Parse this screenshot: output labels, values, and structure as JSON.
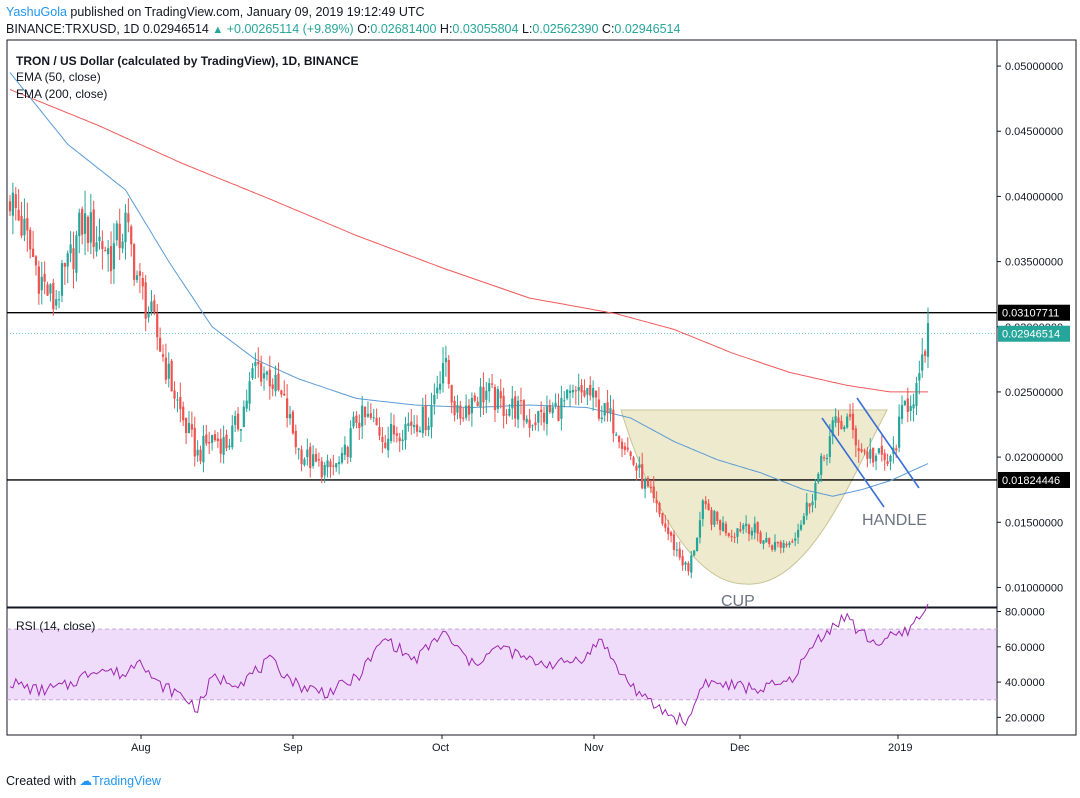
{
  "header": {
    "author": "YashuGola",
    "published_text": "published on TradingView.com, January 09, 2019 19:12:49 UTC",
    "symbol_line": "BINANCE:TRXUSD, 1D",
    "last": "0.02946514",
    "change": "+0.00265114 (+9.89%)",
    "o_label": "O:",
    "o": "0.02681400",
    "h_label": "H:",
    "h": "0.03055804",
    "l_label": "L:",
    "l": "0.02562390",
    "c_label": "C:",
    "c": "0.02946514"
  },
  "legend": {
    "title": "TRON / US Dollar (calculated by TradingView), 1D, BINANCE",
    "ema50": "EMA (50, close)",
    "ema200": "EMA (200, close)",
    "rsi": "RSI (14, close)"
  },
  "footer": {
    "created_with": "Created with",
    "brand": "TradingView"
  },
  "colors": {
    "up": "#26a69a",
    "down": "#ef5350",
    "ema50": "#5b9bd5",
    "ema200": "#f05a5a",
    "rsi": "#9c27b0",
    "rsi_band": "#efdcfa",
    "cup_fill": "#e8e5c0",
    "trendline": "#3b6fd6",
    "annotation": "#6b7480"
  },
  "chart_data": [
    {
      "type": "candlestick",
      "ylim": [
        0.0085,
        0.052
      ],
      "yticks": [
        "0.05000000",
        "0.04500000",
        "0.04000000",
        "0.03500000",
        "0.03000000",
        "0.02500000",
        "0.02000000",
        "0.01500000",
        "0.01000000"
      ],
      "xticks": [
        "Aug",
        "Sep",
        "Oct",
        "Nov",
        "Dec",
        "2019"
      ],
      "horizontal_lines": [
        {
          "value": 0.03107711,
          "label": "0.03107711"
        },
        {
          "value": 0.01824446,
          "label": "0.01824446"
        }
      ],
      "last_price_label": "0.02946514",
      "annotations": [
        "CUP",
        "HANDLE"
      ],
      "close_anchors": [
        [
          0,
          0.04
        ],
        [
          5,
          0.0372
        ],
        [
          10,
          0.034
        ],
        [
          15,
          0.0318
        ],
        [
          20,
          0.0345
        ],
        [
          25,
          0.038
        ],
        [
          30,
          0.037
        ],
        [
          35,
          0.0355
        ],
        [
          40,
          0.0378
        ],
        [
          45,
          0.033
        ],
        [
          50,
          0.03
        ],
        [
          55,
          0.0262
        ],
        [
          60,
          0.0228
        ],
        [
          65,
          0.0202
        ],
        [
          70,
          0.0215
        ],
        [
          75,
          0.021
        ],
        [
          80,
          0.023
        ],
        [
          85,
          0.027
        ],
        [
          90,
          0.0262
        ],
        [
          95,
          0.024
        ],
        [
          100,
          0.0205
        ],
        [
          105,
          0.0195
        ],
        [
          110,
          0.019
        ],
        [
          115,
          0.0195
        ],
        [
          120,
          0.023
        ],
        [
          125,
          0.0228
        ],
        [
          130,
          0.0215
        ],
        [
          135,
          0.0222
        ],
        [
          140,
          0.0228
        ],
        [
          145,
          0.023
        ],
        [
          150,
          0.0275
        ],
        [
          155,
          0.023
        ],
        [
          160,
          0.0245
        ],
        [
          165,
          0.025
        ],
        [
          170,
          0.024
        ],
        [
          175,
          0.0238
        ],
        [
          180,
          0.0228
        ],
        [
          185,
          0.0232
        ],
        [
          190,
          0.0238
        ],
        [
          195,
          0.0245
        ],
        [
          200,
          0.025
        ],
        [
          205,
          0.0235
        ],
        [
          210,
          0.0225
        ],
        [
          215,
          0.02
        ],
        [
          220,
          0.0178
        ],
        [
          225,
          0.0155
        ],
        [
          230,
          0.0132
        ],
        [
          235,
          0.0112
        ],
        [
          240,
          0.016
        ],
        [
          245,
          0.015
        ],
        [
          250,
          0.0142
        ],
        [
          255,
          0.015
        ],
        [
          260,
          0.0138
        ],
        [
          265,
          0.0132
        ],
        [
          270,
          0.0135
        ],
        [
          275,
          0.0155
        ],
        [
          280,
          0.0185
        ],
        [
          285,
          0.0222
        ],
        [
          290,
          0.0228
        ],
        [
          295,
          0.0205
        ],
        [
          300,
          0.02
        ],
        [
          305,
          0.0195
        ],
        [
          310,
          0.024
        ],
        [
          315,
          0.0255
        ],
        [
          318,
          0.0295
        ]
      ],
      "ema50_anchors": [
        [
          0,
          0.0495
        ],
        [
          20,
          0.044
        ],
        [
          40,
          0.0405
        ],
        [
          55,
          0.035
        ],
        [
          70,
          0.03
        ],
        [
          85,
          0.0275
        ],
        [
          100,
          0.026
        ],
        [
          120,
          0.0245
        ],
        [
          140,
          0.024
        ],
        [
          160,
          0.0238
        ],
        [
          180,
          0.024
        ],
        [
          200,
          0.0238
        ],
        [
          215,
          0.023
        ],
        [
          230,
          0.0212
        ],
        [
          245,
          0.0198
        ],
        [
          260,
          0.0188
        ],
        [
          275,
          0.0175
        ],
        [
          285,
          0.017
        ],
        [
          295,
          0.0175
        ],
        [
          305,
          0.0182
        ],
        [
          318,
          0.0195
        ]
      ],
      "ema200_anchors": [
        [
          0,
          0.0482
        ],
        [
          30,
          0.0455
        ],
        [
          60,
          0.0425
        ],
        [
          90,
          0.0398
        ],
        [
          120,
          0.037
        ],
        [
          150,
          0.0345
        ],
        [
          180,
          0.0322
        ],
        [
          210,
          0.031
        ],
        [
          230,
          0.0298
        ],
        [
          250,
          0.028
        ],
        [
          270,
          0.0265
        ],
        [
          290,
          0.0255
        ],
        [
          305,
          0.025
        ],
        [
          318,
          0.025
        ]
      ]
    },
    {
      "type": "line",
      "name": "RSI (14, close)",
      "ylim": [
        10,
        82
      ],
      "yticks": [
        "80.0000",
        "60.0000",
        "40.0000",
        "20.0000"
      ],
      "band": [
        30,
        70
      ],
      "anchors": [
        [
          0,
          40
        ],
        [
          10,
          35
        ],
        [
          20,
          38
        ],
        [
          30,
          48
        ],
        [
          40,
          44
        ],
        [
          45,
          55
        ],
        [
          50,
          40
        ],
        [
          60,
          32
        ],
        [
          65,
          25
        ],
        [
          70,
          42
        ],
        [
          80,
          40
        ],
        [
          90,
          52
        ],
        [
          100,
          38
        ],
        [
          110,
          34
        ],
        [
          120,
          42
        ],
        [
          130,
          65
        ],
        [
          140,
          52
        ],
        [
          150,
          68
        ],
        [
          160,
          50
        ],
        [
          170,
          60
        ],
        [
          180,
          52
        ],
        [
          190,
          50
        ],
        [
          200,
          55
        ],
        [
          205,
          65
        ],
        [
          210,
          48
        ],
        [
          220,
          30
        ],
        [
          230,
          20
        ],
        [
          235,
          18
        ],
        [
          240,
          40
        ],
        [
          250,
          38
        ],
        [
          260,
          36
        ],
        [
          270,
          40
        ],
        [
          280,
          65
        ],
        [
          290,
          78
        ],
        [
          293,
          70
        ],
        [
          300,
          62
        ],
        [
          310,
          68
        ],
        [
          318,
          82
        ]
      ]
    }
  ]
}
